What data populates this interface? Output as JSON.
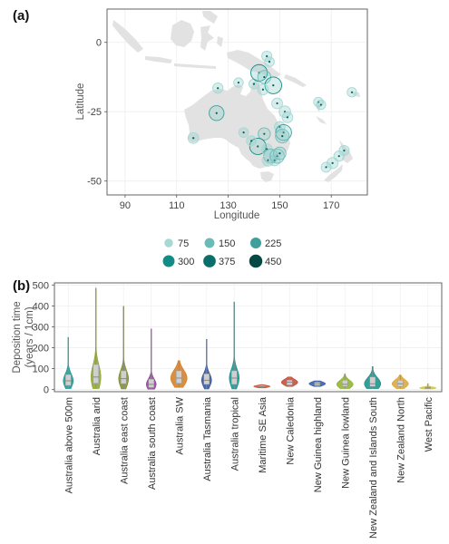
{
  "chart_data": [
    {
      "panel_label": "(a)",
      "type": "scatter",
      "xlabel": "Longitude",
      "ylabel": "Latitude",
      "xlim": [
        83,
        184
      ],
      "ylim": [
        -55,
        12
      ],
      "x_ticks": [
        90,
        110,
        130,
        150,
        170
      ],
      "y_ticks": [
        0,
        -25,
        -50
      ],
      "y_tick_labels": [
        "0",
        "-25",
        "-50"
      ],
      "grid": true,
      "legend": {
        "placement": "bottom",
        "entries": [
          {
            "label": "75",
            "size": 75,
            "color": "#a8d8d4"
          },
          {
            "label": "150",
            "size": 150,
            "color": "#6dbbb7"
          },
          {
            "label": "225",
            "size": 225,
            "color": "#3f9f9b"
          },
          {
            "label": "300",
            "size": 300,
            "color": "#138c85"
          },
          {
            "label": "375",
            "size": 375,
            "color": "#0a6f6a"
          },
          {
            "label": "450",
            "size": 450,
            "color": "#064844"
          }
        ]
      },
      "points": [
        {
          "lon": 116.5,
          "lat": -34.5,
          "size": 110
        },
        {
          "lon": 125.5,
          "lat": -25.5,
          "size": 240
        },
        {
          "lon": 126,
          "lat": -16.5,
          "size": 100
        },
        {
          "lon": 134,
          "lat": -14.5,
          "size": 80
        },
        {
          "lon": 140,
          "lat": -15,
          "size": 90
        },
        {
          "lon": 142,
          "lat": -11,
          "size": 310
        },
        {
          "lon": 144,
          "lat": -12.5,
          "size": 180
        },
        {
          "lon": 145,
          "lat": -5,
          "size": 95
        },
        {
          "lon": 146,
          "lat": -7,
          "size": 85
        },
        {
          "lon": 147.5,
          "lat": -15.5,
          "size": 320
        },
        {
          "lon": 143.5,
          "lat": -17,
          "size": 110
        },
        {
          "lon": 149,
          "lat": -22,
          "size": 110
        },
        {
          "lon": 152,
          "lat": -25,
          "size": 130
        },
        {
          "lon": 153,
          "lat": -27,
          "size": 110
        },
        {
          "lon": 150,
          "lat": -30.5,
          "size": 110
        },
        {
          "lon": 151.5,
          "lat": -32.5,
          "size": 280
        },
        {
          "lon": 151,
          "lat": -33.8,
          "size": 200
        },
        {
          "lon": 144,
          "lat": -33,
          "size": 150
        },
        {
          "lon": 141.5,
          "lat": -37.5,
          "size": 300
        },
        {
          "lon": 139,
          "lat": -35.5,
          "size": 90
        },
        {
          "lon": 145,
          "lat": -38.5,
          "size": 110
        },
        {
          "lon": 146.5,
          "lat": -41,
          "size": 210
        },
        {
          "lon": 145.5,
          "lat": -42.5,
          "size": 140
        },
        {
          "lon": 148,
          "lat": -42.5,
          "size": 120
        },
        {
          "lon": 149,
          "lat": -41,
          "size": 220
        },
        {
          "lon": 150,
          "lat": -40,
          "size": 160
        },
        {
          "lon": 136,
          "lat": -32.5,
          "size": 85
        },
        {
          "lon": 165,
          "lat": -21.5,
          "size": 80
        },
        {
          "lon": 166,
          "lat": -22.5,
          "size": 80
        },
        {
          "lon": 178,
          "lat": -18,
          "size": 80
        },
        {
          "lon": 168,
          "lat": -45,
          "size": 90
        },
        {
          "lon": 170.5,
          "lat": -43.5,
          "size": 120
        },
        {
          "lon": 173,
          "lat": -41,
          "size": 100
        },
        {
          "lon": 175,
          "lat": -39,
          "size": 95
        }
      ]
    },
    {
      "panel_label": "(b)",
      "type": "violin",
      "ylabel_line1": "Deposition time",
      "ylabel_line2": "(years / 1cm)",
      "ylim": [
        -10,
        510
      ],
      "y_ticks": [
        0,
        100,
        200,
        300,
        400,
        500
      ],
      "grid": true,
      "categories": [
        "Australia above 500m",
        "Australia arid",
        "Australia east coast",
        "Australia south coast",
        "Australia SW",
        "Australia Tasmania",
        "Australia tropical",
        "Maritime SE Asia",
        "New Caledonia",
        "New Guinea highland",
        "New Guinea lowland",
        "New Zealand and Islands South",
        "New Zealand North",
        "West Pacific"
      ],
      "series": [
        {
          "name": "Australia above 500m",
          "color": "#15948f",
          "min": 5,
          "q1": 20,
          "median": 42,
          "q3": 72,
          "max": 250
        },
        {
          "name": "Australia arid",
          "color": "#8aa52c",
          "min": 5,
          "q1": 30,
          "median": 60,
          "q3": 120,
          "max": 485
        },
        {
          "name": "Australia east coast",
          "color": "#7a8a2a",
          "min": 3,
          "q1": 28,
          "median": 52,
          "q3": 90,
          "max": 398
        },
        {
          "name": "Australia south coast",
          "color": "#8e3c96",
          "min": 2,
          "q1": 10,
          "median": 25,
          "q3": 50,
          "max": 290
        },
        {
          "name": "Australia SW",
          "color": "#d27a1e",
          "min": 10,
          "q1": 30,
          "median": 55,
          "q3": 90,
          "max": 138
        },
        {
          "name": "Australia Tasmania",
          "color": "#2d4f96",
          "min": 3,
          "q1": 25,
          "median": 45,
          "q3": 75,
          "max": 240
        },
        {
          "name": "Australia tropical",
          "color": "#0f8f8a",
          "min": 3,
          "q1": 25,
          "median": 55,
          "q3": 90,
          "max": 418
        },
        {
          "name": "Maritime SE Asia",
          "color": "#c8502e",
          "min": 8,
          "q1": 12,
          "median": 15,
          "q3": 20,
          "max": 24
        },
        {
          "name": "New Caledonia",
          "color": "#c2452f",
          "min": 15,
          "q1": 22,
          "median": 35,
          "q3": 45,
          "max": 60
        },
        {
          "name": "New Guinea highland",
          "color": "#2e5aa8",
          "min": 15,
          "q1": 20,
          "median": 28,
          "q3": 35,
          "max": 42
        },
        {
          "name": "New Guinea lowland",
          "color": "#8eaf2a",
          "min": 5,
          "q1": 15,
          "median": 25,
          "q3": 45,
          "max": 75
        },
        {
          "name": "New Zealand and Islands South",
          "color": "#138c85",
          "min": 5,
          "q1": 15,
          "median": 28,
          "q3": 60,
          "max": 110
        },
        {
          "name": "New Zealand North",
          "color": "#d8a431",
          "min": 5,
          "q1": 15,
          "median": 28,
          "q3": 45,
          "max": 70
        },
        {
          "name": "West Pacific",
          "color": "#cfc63c",
          "min": 3,
          "q1": 5,
          "median": 8,
          "q3": 12,
          "max": 28
        }
      ]
    }
  ]
}
